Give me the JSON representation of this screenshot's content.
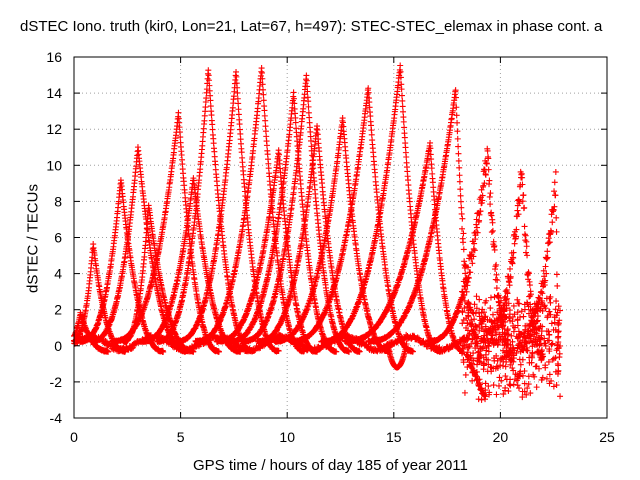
{
  "chart_data": {
    "type": "scatter",
    "title": "dSTEC Iono. truth (kir0, Lon=21, Lat=67, h=497): STEC-STEC_elemax in phase cont. a",
    "xlabel": "GPS time / hours of day 185 of year 2011",
    "ylabel": "dSTEC  / TECUs",
    "xlim": [
      0,
      25
    ],
    "ylim": [
      -4,
      16
    ],
    "xticks": [
      0,
      5,
      10,
      15,
      20,
      25
    ],
    "yticks": [
      -4,
      -2,
      0,
      2,
      4,
      6,
      8,
      10,
      12,
      14,
      16
    ],
    "grid": true,
    "marker": "+",
    "color": "#ff0000",
    "arcs": [
      {
        "x0": -0.3,
        "peak_t": 0.3,
        "peak": 1.8,
        "x1": 1.6
      },
      {
        "x0": -0.1,
        "peak_t": 0.9,
        "peak": 5.6,
        "x1": 2.4
      },
      {
        "x0": 0.3,
        "peak_t": 2.2,
        "peak": 9.2,
        "x1": 4.2
      },
      {
        "x0": 0.8,
        "peak_t": 3.0,
        "peak": 11.0,
        "x1": 5.3
      },
      {
        "x0": 2.3,
        "peak_t": 3.5,
        "peak": 7.8,
        "x1": 5.6
      },
      {
        "x0": 1.8,
        "peak_t": 4.9,
        "peak": 12.9,
        "x1": 6.8
      },
      {
        "x0": 3.2,
        "peak_t": 5.6,
        "peak": 9.3,
        "x1": 7.8
      },
      {
        "x0": 3.9,
        "peak_t": 6.3,
        "peak": 15.3,
        "x1": 8.4
      },
      {
        "x0": 4.8,
        "peak_t": 7.6,
        "peak": 15.2,
        "x1": 9.6
      },
      {
        "x0": 5.7,
        "peak_t": 8.8,
        "peak": 15.4,
        "x1": 10.8
      },
      {
        "x0": 6.7,
        "peak_t": 9.6,
        "peak": 10.8,
        "x1": 11.4
      },
      {
        "x0": 7.3,
        "peak_t": 10.3,
        "peak": 14.0,
        "x1": 12.3
      },
      {
        "x0": 7.9,
        "peak_t": 10.9,
        "peak": 15.0,
        "x1": 12.9
      },
      {
        "x0": 8.6,
        "peak_t": 11.4,
        "peak": 12.2,
        "x1": 13.4
      },
      {
        "x0": 9.4,
        "peak_t": 12.6,
        "peak": 12.6,
        "x1": 14.8
      },
      {
        "x0": 10.2,
        "peak_t": 13.8,
        "peak": 14.3,
        "x1": 15.9
      },
      {
        "x0": 11.6,
        "peak_t": 15.3,
        "peak": 15.5,
        "x1": 17.2
      },
      {
        "x0": 12.7,
        "peak_t": 16.7,
        "peak": 11.2,
        "x1": 18.3
      },
      {
        "x0": 13.8,
        "peak_t": 17.9,
        "peak": 14.2,
        "x1": 19.1
      },
      {
        "x0": 16.6,
        "peak_t": 19.4,
        "peak": 10.8,
        "x1": 20.6
      },
      {
        "x0": 19.2,
        "peak_t": 21.0,
        "peak": 9.8,
        "x1": 22.0
      },
      {
        "x0": 20.8,
        "peak_t": 22.6,
        "peak": 9.1,
        "x1": 22.8
      }
    ],
    "noise_region": {
      "x0": 18.2,
      "x1": 22.8,
      "ymin": -3.2,
      "ymax": 3.2
    }
  }
}
